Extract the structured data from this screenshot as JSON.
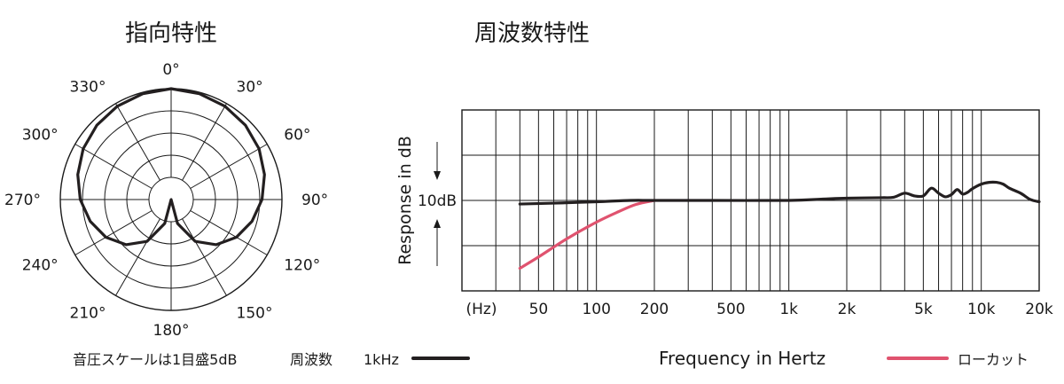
{
  "polar": {
    "title": "指向特性",
    "angle_labels": [
      "0°",
      "30°",
      "60°",
      "90°",
      "120°",
      "150°",
      "180°",
      "210°",
      "240°",
      "270°",
      "300°",
      "330°"
    ],
    "scale_note": "音圧スケールは1目盛5dB"
  },
  "legend": {
    "freq_label": "周波数",
    "freq_value": "1kHz",
    "lowcut_label": "ローカット",
    "colors": {
      "main": "#231f20",
      "lowcut": "#e0536f"
    }
  },
  "freq": {
    "title": "周波数特性",
    "ylabel": "Response in dB",
    "scale_label": "10dB",
    "xlabel": "Frequency in Hertz",
    "unit_label": "(Hz)",
    "tick_labels": [
      "50",
      "100",
      "200",
      "500",
      "1k",
      "2k",
      "5k",
      "10k",
      "20k"
    ]
  },
  "chart_data": [
    {
      "type": "polar",
      "pattern": "cardioid",
      "frequency": "1kHz",
      "r_unit": "dB",
      "r_grid_step": 5,
      "r_range": [
        -25,
        0
      ],
      "theta_unit": "deg",
      "theta": [
        0,
        15,
        30,
        45,
        60,
        75,
        90,
        105,
        120,
        135,
        150,
        165,
        180,
        195,
        210,
        225,
        240,
        255,
        270,
        285,
        300,
        315,
        330,
        345
      ],
      "r": [
        0,
        -0.3,
        -0.7,
        -1.3,
        -2.1,
        -3.2,
        -4.5,
        -6.1,
        -8.0,
        -10.6,
        -14.1,
        -19.4,
        -25,
        -19.4,
        -14.1,
        -10.6,
        -8.0,
        -6.1,
        -4.5,
        -3.2,
        -2.1,
        -1.3,
        -0.7,
        -0.3
      ]
    },
    {
      "type": "line",
      "x_scale": "log",
      "x_unit": "Hz",
      "y_unit": "dB",
      "y_grid_step": 10,
      "ylim": [
        -20,
        20
      ],
      "series": [
        {
          "name": "周波数 1kHz",
          "color": "#231f20",
          "x": [
            40,
            60,
            100,
            150,
            200,
            400,
            1000,
            1500,
            2000,
            3000,
            3500,
            4000,
            4500,
            5000,
            5500,
            6000,
            6500,
            7000,
            7500,
            8000,
            8500,
            9000,
            10000,
            11000,
            12000,
            13000,
            14000,
            16000,
            18000,
            20000
          ],
          "y": [
            -0.8,
            -0.6,
            -0.3,
            0,
            0,
            0,
            0,
            0.3,
            0.5,
            0.6,
            0.7,
            1.6,
            1.0,
            1.0,
            2.7,
            1.6,
            0.8,
            1.3,
            2.4,
            1.4,
            1.8,
            2.6,
            3.6,
            4.0,
            4.0,
            3.6,
            2.7,
            1.6,
            0.2,
            -0.3
          ]
        },
        {
          "name": "ローカット",
          "color": "#e0536f",
          "x": [
            40,
            50,
            70,
            100,
            130,
            160,
            200
          ],
          "y": [
            -15.0,
            -12.5,
            -8.5,
            -4.8,
            -2.5,
            -0.9,
            0
          ]
        }
      ]
    }
  ]
}
